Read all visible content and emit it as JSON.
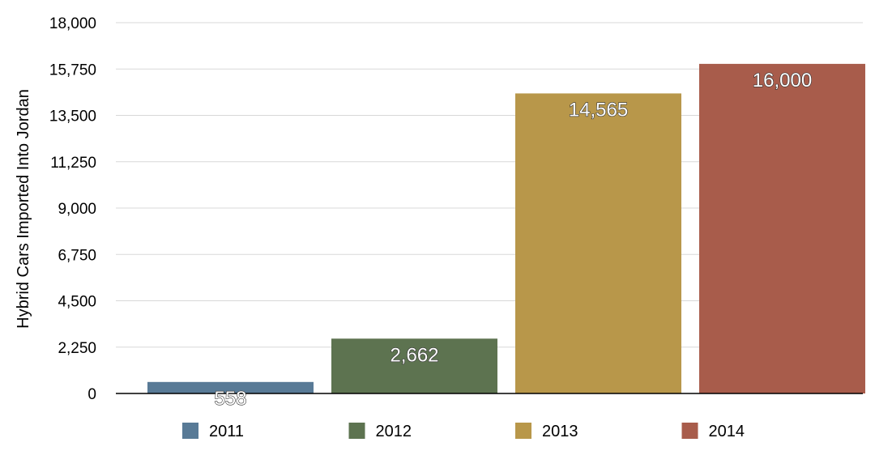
{
  "chart_data": {
    "type": "bar",
    "categories": [
      "2011",
      "2012",
      "2013",
      "2014"
    ],
    "values": [
      558,
      2662,
      14565,
      16000
    ],
    "data_labels": [
      "558",
      "2,662",
      "14,565",
      "16,000"
    ],
    "colors": [
      "#587a96",
      "#5d7350",
      "#b8974a",
      "#a85c4b"
    ],
    "title": "",
    "xlabel": "",
    "ylabel": "Hybrid Cars Imported Into Jordan",
    "ylim": [
      0,
      18000
    ],
    "yticks": [
      0,
      2250,
      4500,
      6750,
      9000,
      11250,
      13500,
      15750,
      18000
    ],
    "ytick_labels": [
      "0",
      "2,250",
      "4,500",
      "6,750",
      "9,000",
      "11,250",
      "13,500",
      "15,750",
      "18,000"
    ],
    "grid": true,
    "legend_placement": "bottom"
  }
}
